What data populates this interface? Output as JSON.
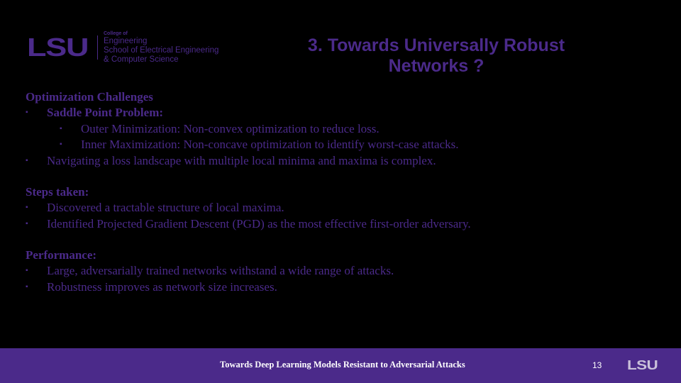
{
  "logo": {
    "mark": "LSU",
    "college_line1": "College of",
    "college_line2": "Engineering",
    "school_line1": "School of Electrical Engineering",
    "school_line2": "& Computer Science"
  },
  "title_line1": "3. Towards Universally Robust",
  "title_line2": "Networks ?",
  "sections": [
    {
      "heading": "Optimization Challenges",
      "bullets": [
        {
          "text": "Saddle Point Problem:",
          "level": 1,
          "bold": true
        },
        {
          "text": "Outer Minimization: Non-convex optimization to reduce loss.",
          "level": 2
        },
        {
          "text": "Inner Maximization: Non-concave optimization to identify worst-case attacks.",
          "level": 2
        },
        {
          "text": "Navigating a loss landscape with multiple local minima and maxima is complex.",
          "level": 1
        }
      ]
    },
    {
      "heading": "Steps taken:",
      "bullets": [
        {
          "text": "Discovered a tractable structure of local maxima.",
          "level": 1
        },
        {
          "text": "Identified Projected Gradient Descent (PGD) as the most effective first-order adversary.",
          "level": 1
        }
      ]
    },
    {
      "heading": "Performance:",
      "bullets": [
        {
          "text": "Large, adversarially trained networks withstand a wide range of attacks.",
          "level": 1
        },
        {
          "text": "Robustness improves as network size increases.",
          "level": 1
        }
      ]
    }
  ],
  "bullet_marker": "▪",
  "footer": {
    "text": "Towards Deep Learning Models Resistant to Adversarial Attacks",
    "page_number": "13",
    "logo": "LSU"
  },
  "colors": {
    "background": "#000000",
    "accent_purple": "#4b2a8a",
    "footer_text": "#ffffff"
  }
}
